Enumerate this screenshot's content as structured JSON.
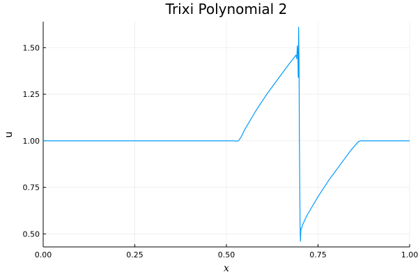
{
  "chart_data": {
    "type": "line",
    "title": "Trixi Polynomial 2",
    "xlabel": "x",
    "ylabel": "u",
    "xlim": [
      0.0,
      1.0
    ],
    "ylim": [
      0.43,
      1.64
    ],
    "xticks": [
      0.0,
      0.25,
      0.5,
      0.75,
      1.0
    ],
    "xtick_labels": [
      "0.00",
      "0.25",
      "0.50",
      "0.75",
      "1.00"
    ],
    "yticks": [
      0.5,
      0.75,
      1.0,
      1.25,
      1.5
    ],
    "ytick_labels": [
      "0.50",
      "0.75",
      "1.00",
      "1.25",
      "1.50"
    ],
    "grid": true,
    "legend": "none",
    "series": [
      {
        "color": "#009AFA",
        "x": [
          0.0,
          0.05,
          0.1,
          0.15,
          0.2,
          0.25,
          0.3,
          0.35,
          0.4,
          0.45,
          0.5,
          0.52,
          0.527,
          0.533,
          0.54,
          0.55,
          0.58,
          0.61,
          0.64,
          0.67,
          0.69,
          0.692,
          0.6935,
          0.695,
          0.696,
          0.697,
          0.698,
          0.6985,
          0.699,
          0.7,
          0.701,
          0.702,
          0.703,
          0.7035,
          0.705,
          0.708,
          0.72,
          0.75,
          0.78,
          0.81,
          0.84,
          0.86,
          0.866,
          0.87,
          0.9,
          0.95,
          1.0
        ],
        "y": [
          1.0,
          1.0,
          1.0,
          1.0,
          1.0,
          1.0,
          1.0,
          1.0,
          1.0,
          1.0,
          1.0,
          1.0,
          0.998,
          1.0,
          1.02,
          1.06,
          1.16,
          1.25,
          1.33,
          1.41,
          1.46,
          1.44,
          1.51,
          1.47,
          1.34,
          1.61,
          1.45,
          1.3,
          1.05,
          0.8,
          0.55,
          0.46,
          0.51,
          0.53,
          0.53,
          0.55,
          0.6,
          0.7,
          0.79,
          0.87,
          0.95,
          0.995,
          1.0,
          1.0,
          1.0,
          1.0,
          1.0
        ]
      }
    ]
  }
}
